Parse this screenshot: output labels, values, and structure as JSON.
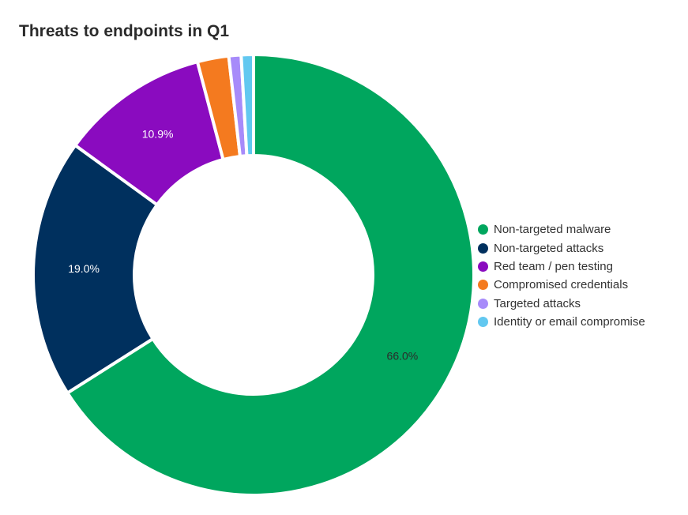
{
  "chart_data": {
    "type": "pie",
    "variant": "donut",
    "title": "Threats to endpoints in Q1",
    "legend_position": "right",
    "slices": [
      {
        "name": "Non-targeted malware",
        "value": 66.0,
        "label": "66.0%",
        "color": "#00a65e"
      },
      {
        "name": "Non-targeted attacks",
        "value": 19.0,
        "label": "19.0%",
        "color": "#00305e"
      },
      {
        "name": "Red team / pen testing",
        "value": 10.9,
        "label": "10.9%",
        "color": "#8a0bbf"
      },
      {
        "name": "Compromised credentials",
        "value": 2.3,
        "label": "",
        "color": "#f47a1f"
      },
      {
        "name": "Targeted attacks",
        "value": 0.9,
        "label": "",
        "color": "#a78bfa"
      },
      {
        "name": "Identity or email compromise",
        "value": 0.9,
        "label": "",
        "color": "#62c8f0"
      }
    ]
  }
}
